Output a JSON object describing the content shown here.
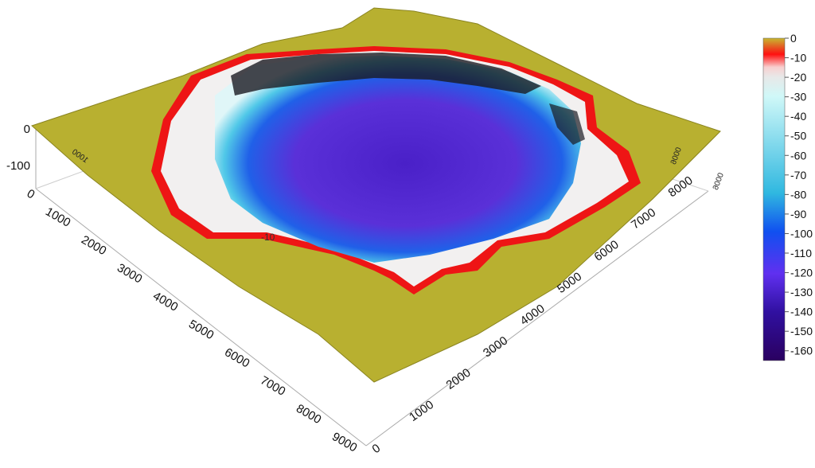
{
  "chart_data": {
    "type": "surface3d",
    "title": "",
    "x_axis": {
      "ticks": [
        "0",
        "1000",
        "2000",
        "3000",
        "4000",
        "5000",
        "6000",
        "7000",
        "8000",
        "9000"
      ]
    },
    "y_axis": {
      "ticks": [
        "0",
        "1000",
        "2000",
        "3000",
        "4000",
        "5000",
        "6000",
        "7000",
        "8000"
      ]
    },
    "z_axis": {
      "ticks": [
        "0",
        "-100"
      ]
    },
    "back_axis_labels": [
      "1000",
      "9000",
      "9000"
    ],
    "contour_label": "-10",
    "colorbar": {
      "range": [
        -165,
        0
      ],
      "ticks": [
        "0",
        "-10",
        "-20",
        "-30",
        "-40",
        "-50",
        "-60",
        "-70",
        "-80",
        "-90",
        "-100",
        "-110",
        "-120",
        "-130",
        "-140",
        "-150",
        "-160"
      ],
      "colors": {
        "0": "#c8b830",
        "-5": "#ff1010",
        "-15": "#f0f0f0",
        "-30": "#d0f4f8",
        "-80": "#30b8e0",
        "-100": "#1050f0",
        "-120": "#6030f0",
        "-165": "#2a0060"
      }
    }
  }
}
